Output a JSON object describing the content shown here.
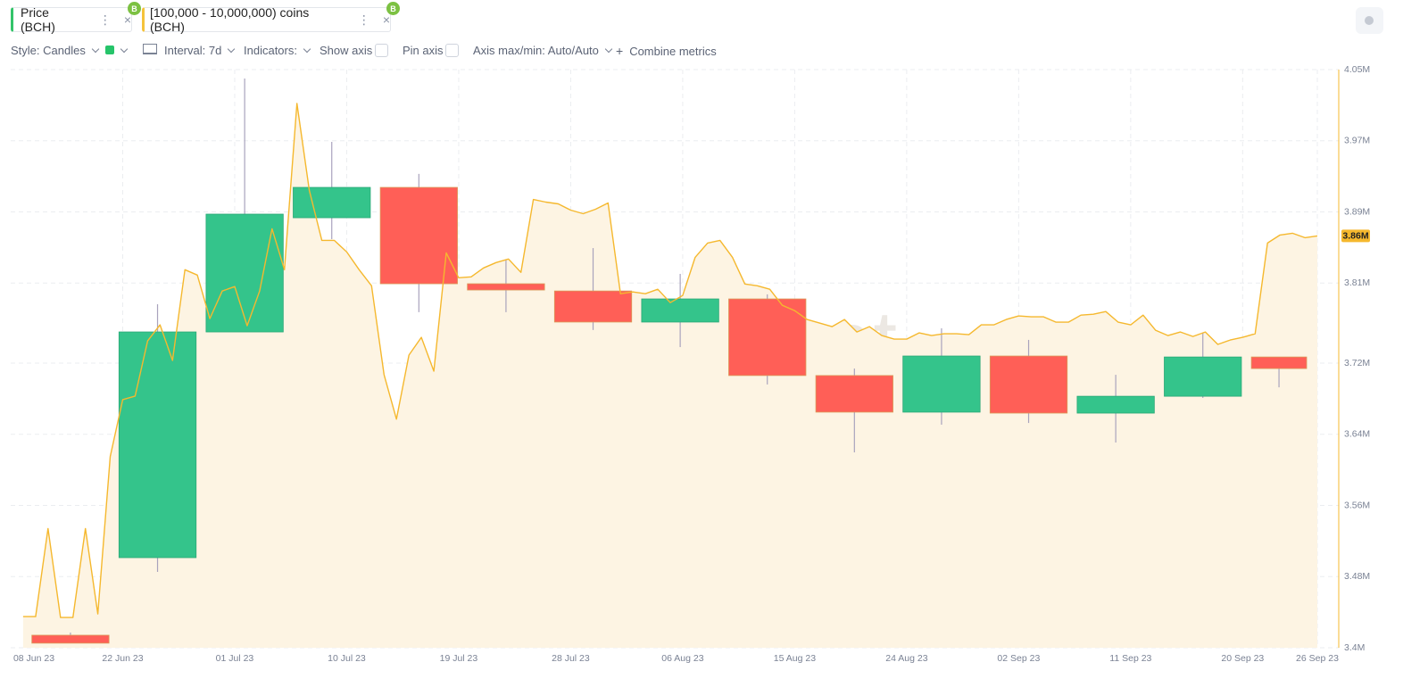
{
  "toolbar": {
    "style": "Style: Candles",
    "interval": "Interval: 7d",
    "indicators": "Indicators:",
    "show_axis": "Show axis",
    "pin_axis": "Pin axis",
    "axis_maxmin": "Axis max/min: Auto/Auto",
    "combine": "Combine metrics"
  },
  "chart_data": {
    "type": "candlestick",
    "name": "Price (BCH)",
    "watermark": "·santiment·",
    "up_color": "#34c48b",
    "down_color": "#ff5f57",
    "x": [
      "2023-06-14",
      "2023-06-21",
      "2023-06-28",
      "2023-07-05",
      "2023-07-12",
      "2023-07-19",
      "2023-07-26",
      "2023-08-02",
      "2023-08-09",
      "2023-08-16",
      "2023-08-23",
      "2023-08-30",
      "2023-09-06",
      "2023-09-13",
      "2023-09-20"
    ],
    "open": [
      105.2,
      137.4,
      231.1,
      278.5,
      291.1,
      251.1,
      248.1,
      235.2,
      244.8,
      213.0,
      197.8,
      221.1,
      197.4,
      204.4,
      220.7
    ],
    "high": [
      106.3,
      242.6,
      336.3,
      310.0,
      296.7,
      261.1,
      265.9,
      255.2,
      246.7,
      215.9,
      232.6,
      227.8,
      213.3,
      230.7,
      220.7
    ],
    "low": [
      101.9,
      131.5,
      231.1,
      269.6,
      239.3,
      239.3,
      231.9,
      224.8,
      209.3,
      181.1,
      192.6,
      193.3,
      185.2,
      203.7,
      208.1
    ],
    "close": [
      101.9,
      231.1,
      280.0,
      291.1,
      251.1,
      248.5,
      235.2,
      244.8,
      213.0,
      197.8,
      221.1,
      197.4,
      204.4,
      220.7,
      215.9
    ],
    "ylim": [
      100,
      340
    ],
    "xlim": [
      "2023-06-13",
      "2023-09-26"
    ],
    "xticks": [
      {
        "value": "2023-06-08",
        "label": "08 Jun 23"
      },
      {
        "value": "2023-06-22",
        "label": "22 Jun 23"
      },
      {
        "value": "2023-07-01",
        "label": "01 Jul 23"
      },
      {
        "value": "2023-07-10",
        "label": "10 Jul 23"
      },
      {
        "value": "2023-07-19",
        "label": "19 Jul 23"
      },
      {
        "value": "2023-07-28",
        "label": "28 Jul 23"
      },
      {
        "value": "2023-08-06",
        "label": "06 Aug 23"
      },
      {
        "value": "2023-08-15",
        "label": "15 Aug 23"
      },
      {
        "value": "2023-08-24",
        "label": "24 Aug 23"
      },
      {
        "value": "2023-09-02",
        "label": "02 Sep 23"
      },
      {
        "value": "2023-09-11",
        "label": "11 Sep 23"
      },
      {
        "value": "2023-09-20",
        "label": "20 Sep 23"
      },
      {
        "value": "2023-09-26",
        "label": "26 Sep 23"
      }
    ],
    "y2lim": [
      3400000,
      4050000
    ],
    "y2ticks": [
      {
        "value": 3400000,
        "label": "3.4M"
      },
      {
        "value": 3480000,
        "label": "3.48M"
      },
      {
        "value": 3560000,
        "label": "3.56M"
      },
      {
        "value": 3640000,
        "label": "3.64M"
      },
      {
        "value": 3720000,
        "label": "3.72M"
      },
      {
        "value": 3810000,
        "label": "3.81M"
      },
      {
        "value": 3890000,
        "label": "3.89M"
      },
      {
        "value": 3970000,
        "label": "3.97M"
      },
      {
        "value": 4050000,
        "label": "4.05M"
      }
    ],
    "grid": true,
    "series": [
      {
        "name": "[100,000 - 10,000,000) coins (BCH)",
        "type": "area",
        "axis": "y2",
        "color": "#f5b82e",
        "fill": "#fdf4e3",
        "last_value_label": "3.86M",
        "x": [
          "2023-06-14",
          "2023-06-15",
          "2023-06-16",
          "2023-06-17",
          "2023-06-18",
          "2023-06-19",
          "2023-06-20",
          "2023-06-21",
          "2023-06-22",
          "2023-06-23",
          "2023-06-24",
          "2023-06-25",
          "2023-06-26",
          "2023-06-27",
          "2023-06-28",
          "2023-06-29",
          "2023-06-30",
          "2023-07-01",
          "2023-07-02",
          "2023-07-03",
          "2023-07-04",
          "2023-07-05",
          "2023-07-06",
          "2023-07-07",
          "2023-07-08",
          "2023-07-09",
          "2023-07-10",
          "2023-07-11",
          "2023-07-12",
          "2023-07-13",
          "2023-07-14",
          "2023-07-15",
          "2023-07-16",
          "2023-07-17",
          "2023-07-18",
          "2023-07-19",
          "2023-07-20",
          "2023-07-21",
          "2023-07-22",
          "2023-07-23",
          "2023-07-24",
          "2023-07-25",
          "2023-07-26",
          "2023-07-27",
          "2023-07-28",
          "2023-07-29",
          "2023-07-30",
          "2023-07-31",
          "2023-08-01",
          "2023-08-02",
          "2023-08-03",
          "2023-08-04",
          "2023-08-05",
          "2023-08-06",
          "2023-08-07",
          "2023-08-08",
          "2023-08-09",
          "2023-08-10",
          "2023-08-11",
          "2023-08-12",
          "2023-08-13",
          "2023-08-14",
          "2023-08-15",
          "2023-08-16",
          "2023-08-17",
          "2023-08-18",
          "2023-08-19",
          "2023-08-20",
          "2023-08-21",
          "2023-08-22",
          "2023-08-23",
          "2023-08-24",
          "2023-08-25",
          "2023-08-26",
          "2023-08-27",
          "2023-08-28",
          "2023-08-29",
          "2023-08-30",
          "2023-08-31",
          "2023-09-01",
          "2023-09-02",
          "2023-09-03",
          "2023-09-04",
          "2023-09-05",
          "2023-09-06",
          "2023-09-07",
          "2023-09-08",
          "2023-09-09",
          "2023-09-10",
          "2023-09-11",
          "2023-09-12",
          "2023-09-13",
          "2023-09-14",
          "2023-09-15",
          "2023-09-16",
          "2023-09-17",
          "2023-09-18",
          "2023-09-19",
          "2023-09-20",
          "2023-09-21",
          "2023-09-22",
          "2023-09-23",
          "2023-09-24",
          "2023-09-25",
          "2023-09-26"
        ],
        "values": [
          3435000,
          3435000,
          3534000,
          3434000,
          3434000,
          3534000,
          3438000,
          3615000,
          3679000,
          3683000,
          3745000,
          3763000,
          3723000,
          3825000,
          3819000,
          3770000,
          3801000,
          3806000,
          3762000,
          3801000,
          3871000,
          3825000,
          4012000,
          3914000,
          3858000,
          3858000,
          3845000,
          3825000,
          3807000,
          3707000,
          3657000,
          3729000,
          3749000,
          3711000,
          3844000,
          3816000,
          3817000,
          3827000,
          3833000,
          3837000,
          3822000,
          3904000,
          3901000,
          3899000,
          3892000,
          3888000,
          3893000,
          3900000,
          3798000,
          3800000,
          3798000,
          3803000,
          3788000,
          3796000,
          3839000,
          3855000,
          3858000,
          3839000,
          3809000,
          3807000,
          3803000,
          3785000,
          3779000,
          3769000,
          3765000,
          3761000,
          3769000,
          3755000,
          3761000,
          3751000,
          3747000,
          3747000,
          3754000,
          3751000,
          3753000,
          3753000,
          3752000,
          3763000,
          3763000,
          3769000,
          3773000,
          3772000,
          3772000,
          3766000,
          3766000,
          3774000,
          3775000,
          3778000,
          3766000,
          3763000,
          3774000,
          3757000,
          3751000,
          3755000,
          3750000,
          3755000,
          3741000,
          3746000,
          3749000,
          3753000,
          3855000,
          3864000,
          3866000,
          3861000,
          3863000
        ]
      }
    ]
  }
}
